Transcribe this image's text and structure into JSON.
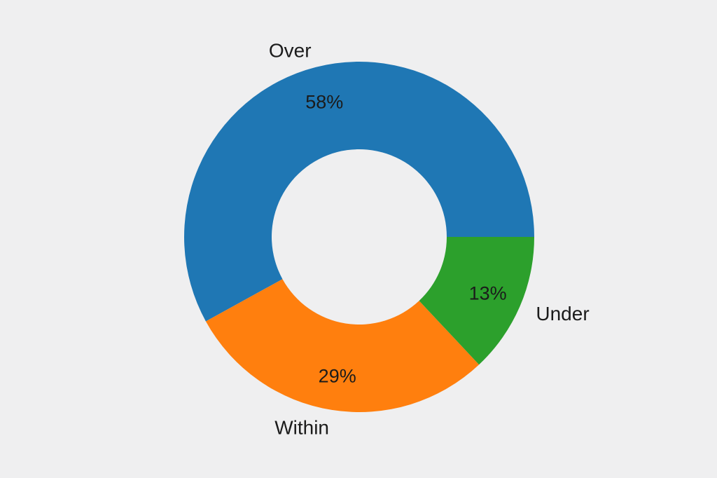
{
  "page": {
    "background_color": "#efeff0",
    "text_color": "#1b1b1b"
  },
  "chart_data": {
    "type": "pie",
    "subtype": "donut",
    "categories": [
      "Over",
      "Within",
      "Under"
    ],
    "values": [
      58,
      29,
      13
    ],
    "value_labels": [
      "58%",
      "29%",
      "13%"
    ],
    "colors": [
      "#1f77b4",
      "#ff7f0e",
      "#2ca02c"
    ],
    "hole_ratio": 0.5,
    "start_angle_deg": 0,
    "counterclockwise": true,
    "title": "",
    "legend": "none",
    "label_distance": 1.1,
    "pct_distance": 0.8
  }
}
